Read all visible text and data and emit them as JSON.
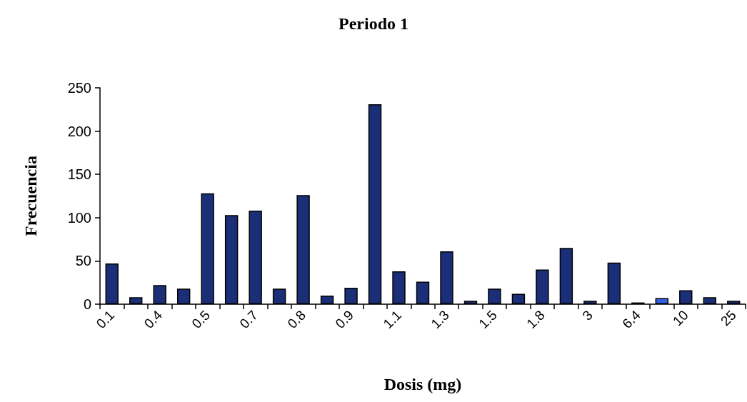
{
  "chart_data": {
    "type": "bar",
    "title": "Periodo 1",
    "xlabel": "Dosis (mg)",
    "ylabel": "Frecuencia",
    "categories": [
      "0.1",
      null,
      "0.4",
      null,
      "0.5",
      null,
      "0.7",
      null,
      "0.8",
      null,
      "0.9",
      null,
      "1.1",
      null,
      "1.3",
      null,
      "1.5",
      null,
      "1.8",
      null,
      "3",
      null,
      "6.4",
      null,
      "10",
      null,
      "25"
    ],
    "values": [
      47,
      8,
      22,
      18,
      128,
      103,
      108,
      18,
      126,
      10,
      19,
      231,
      38,
      26,
      61,
      4,
      18,
      12,
      40,
      65,
      4,
      48,
      2,
      7,
      16,
      8,
      4
    ],
    "colors": [
      "#1b2e78",
      "#1b2e78",
      "#1b2e78",
      "#1b2e78",
      "#1b2e78",
      "#1b2e78",
      "#1b2e78",
      "#1b2e78",
      "#1b2e78",
      "#1b2e78",
      "#1b2e78",
      "#1b2e78",
      "#1b2e78",
      "#1b2e78",
      "#1b2e78",
      "#1b2e78",
      "#1b2e78",
      "#1b2e78",
      "#1b2e78",
      "#1b2e78",
      "#1b2e78",
      "#1b2e78",
      "#1b2e78",
      "#3360e0",
      "#1b2e78",
      "#1b2e78",
      "#1b2e78"
    ],
    "ylim": [
      0,
      250
    ],
    "yticks": [
      0,
      50,
      100,
      150,
      200,
      250
    ]
  }
}
